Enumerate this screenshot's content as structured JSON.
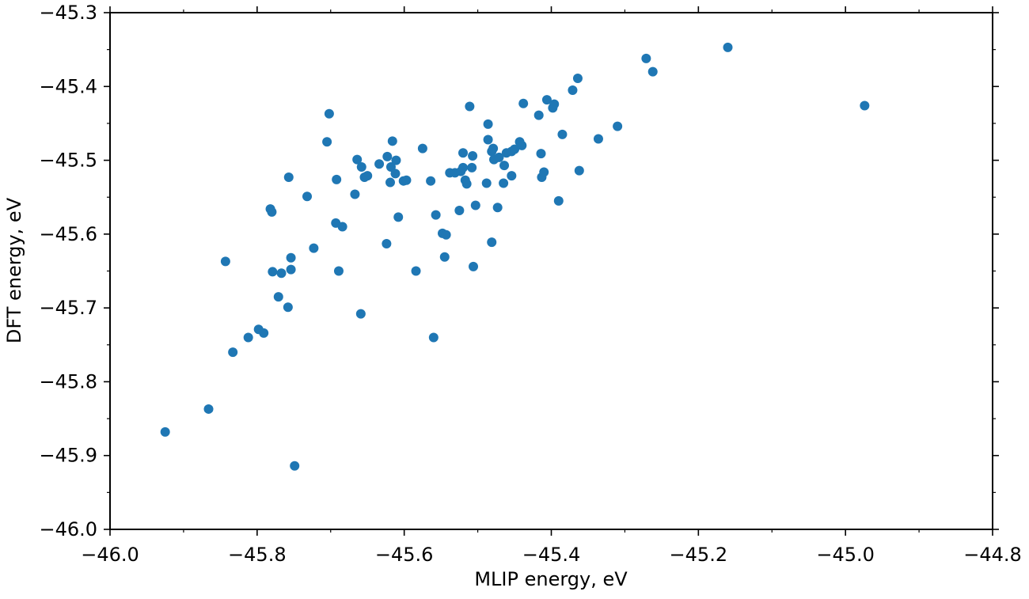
{
  "chart_data": {
    "type": "scatter",
    "title": "",
    "xlabel": "MLIP energy, eV",
    "ylabel": "DFT energy, eV",
    "xlim": [
      -46.0,
      -44.8
    ],
    "ylim": [
      -46.0,
      -45.3
    ],
    "x_ticks": [
      {
        "value": -46.0,
        "label": "−46.0"
      },
      {
        "value": -45.8,
        "label": "−45.8"
      },
      {
        "value": -45.6,
        "label": "−45.6"
      },
      {
        "value": -45.4,
        "label": "−45.4"
      },
      {
        "value": -45.2,
        "label": "−45.2"
      },
      {
        "value": -45.0,
        "label": "−45.0"
      },
      {
        "value": -44.8,
        "label": "−44.8"
      }
    ],
    "y_ticks": [
      {
        "value": -46.0,
        "label": "−46.0"
      },
      {
        "value": -45.9,
        "label": "−45.9"
      },
      {
        "value": -45.8,
        "label": "−45.8"
      },
      {
        "value": -45.7,
        "label": "−45.7"
      },
      {
        "value": -45.6,
        "label": "−45.6"
      },
      {
        "value": -45.5,
        "label": "−45.5"
      },
      {
        "value": -45.4,
        "label": "−45.4"
      },
      {
        "value": -45.3,
        "label": "−45.3"
      }
    ],
    "x_minor_step": 0.1,
    "y_minor_step": 0.05,
    "grid": false,
    "marker_color": "#1f77b4",
    "series": [
      {
        "points": [
          [
            -45.925,
            -45.868
          ],
          [
            -45.866,
            -45.837
          ],
          [
            -45.843,
            -45.637
          ],
          [
            -45.833,
            -45.76
          ],
          [
            -45.812,
            -45.74
          ],
          [
            -45.798,
            -45.729
          ],
          [
            -45.791,
            -45.734
          ],
          [
            -45.782,
            -45.566
          ],
          [
            -45.78,
            -45.57
          ],
          [
            -45.779,
            -45.651
          ],
          [
            -45.771,
            -45.685
          ],
          [
            -45.767,
            -45.653
          ],
          [
            -45.758,
            -45.699
          ],
          [
            -45.757,
            -45.523
          ],
          [
            -45.754,
            -45.632
          ],
          [
            -45.754,
            -45.648
          ],
          [
            -45.749,
            -45.914
          ],
          [
            -45.732,
            -45.549
          ],
          [
            -45.723,
            -45.619
          ],
          [
            -45.705,
            -45.475
          ],
          [
            -45.702,
            -45.437
          ],
          [
            -45.693,
            -45.585
          ],
          [
            -45.692,
            -45.526
          ],
          [
            -45.689,
            -45.65
          ],
          [
            -45.684,
            -45.59
          ],
          [
            -45.667,
            -45.546
          ],
          [
            -45.664,
            -45.499
          ],
          [
            -45.659,
            -45.708
          ],
          [
            -45.658,
            -45.509
          ],
          [
            -45.654,
            -45.523
          ],
          [
            -45.65,
            -45.521
          ],
          [
            -45.634,
            -45.505
          ],
          [
            -45.624,
            -45.613
          ],
          [
            -45.623,
            -45.495
          ],
          [
            -45.619,
            -45.53
          ],
          [
            -45.618,
            -45.509
          ],
          [
            -45.616,
            -45.474
          ],
          [
            -45.612,
            -45.518
          ],
          [
            -45.611,
            -45.5
          ],
          [
            -45.608,
            -45.577
          ],
          [
            -45.601,
            -45.528
          ],
          [
            -45.597,
            -45.527
          ],
          [
            -45.584,
            -45.65
          ],
          [
            -45.575,
            -45.484
          ],
          [
            -45.564,
            -45.528
          ],
          [
            -45.56,
            -45.74
          ],
          [
            -45.557,
            -45.574
          ],
          [
            -45.548,
            -45.599
          ],
          [
            -45.545,
            -45.631
          ],
          [
            -45.543,
            -45.601
          ],
          [
            -45.538,
            -45.517
          ],
          [
            -45.531,
            -45.517
          ],
          [
            -45.525,
            -45.568
          ],
          [
            -45.523,
            -45.515
          ],
          [
            -45.52,
            -45.49
          ],
          [
            -45.52,
            -45.51
          ],
          [
            -45.517,
            -45.527
          ],
          [
            -45.515,
            -45.532
          ],
          [
            -45.511,
            -45.427
          ],
          [
            -45.508,
            -45.51
          ],
          [
            -45.507,
            -45.494
          ],
          [
            -45.506,
            -45.644
          ],
          [
            -45.503,
            -45.561
          ],
          [
            -45.488,
            -45.531
          ],
          [
            -45.486,
            -45.472
          ],
          [
            -45.486,
            -45.451
          ],
          [
            -45.481,
            -45.611
          ],
          [
            -45.481,
            -45.488
          ],
          [
            -45.479,
            -45.484
          ],
          [
            -45.478,
            -45.499
          ],
          [
            -45.473,
            -45.564
          ],
          [
            -45.471,
            -45.496
          ],
          [
            -45.465,
            -45.531
          ],
          [
            -45.464,
            -45.507
          ],
          [
            -45.461,
            -45.49
          ],
          [
            -45.454,
            -45.488
          ],
          [
            -45.454,
            -45.521
          ],
          [
            -45.45,
            -45.485
          ],
          [
            -45.443,
            -45.475
          ],
          [
            -45.44,
            -45.48
          ],
          [
            -45.438,
            -45.423
          ],
          [
            -45.417,
            -45.439
          ],
          [
            -45.414,
            -45.491
          ],
          [
            -45.413,
            -45.523
          ],
          [
            -45.41,
            -45.516
          ],
          [
            -45.406,
            -45.418
          ],
          [
            -45.398,
            -45.429
          ],
          [
            -45.396,
            -45.424
          ],
          [
            -45.39,
            -45.555
          ],
          [
            -45.385,
            -45.465
          ],
          [
            -45.371,
            -45.405
          ],
          [
            -45.364,
            -45.389
          ],
          [
            -45.362,
            -45.514
          ],
          [
            -45.336,
            -45.471
          ],
          [
            -45.31,
            -45.454
          ],
          [
            -45.271,
            -45.362
          ],
          [
            -45.262,
            -45.38
          ],
          [
            -45.16,
            -45.347
          ],
          [
            -44.974,
            -45.426
          ]
        ]
      }
    ]
  }
}
